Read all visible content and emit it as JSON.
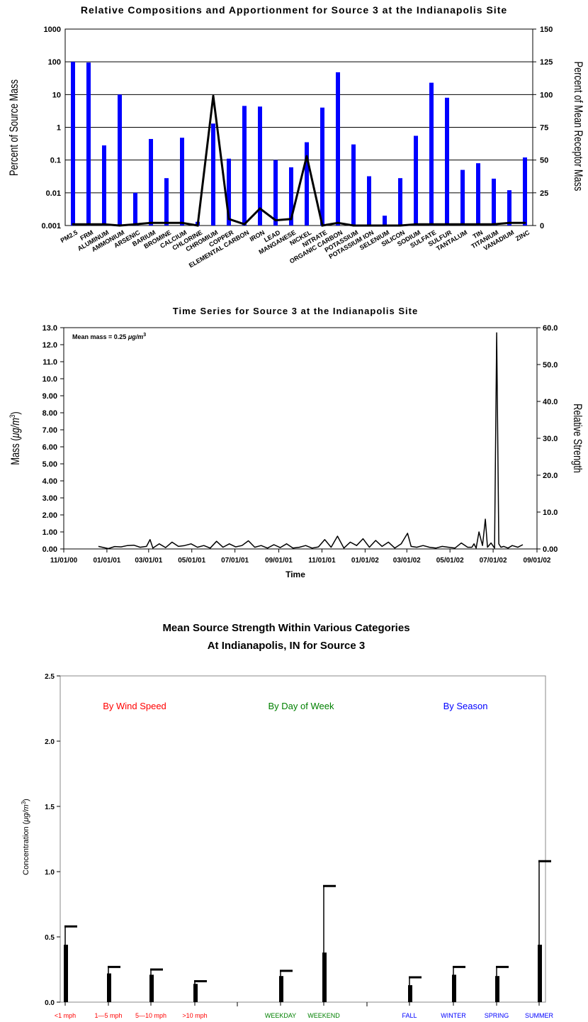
{
  "chart_data": [
    {
      "type": "bar",
      "title": "Relative Compositions and Apportionment for Source 3 at the Indianapolis Site",
      "ylabel": "Percent of Source Mass",
      "y2label": "Percent of Mean Receptor Mass",
      "yscale": "log",
      "ylim": [
        0.001,
        1000
      ],
      "y_ticks": [
        "1000",
        "100",
        "10",
        "1",
        "0.1",
        "0.01",
        "0.001"
      ],
      "y2lim": [
        0,
        150
      ],
      "y2_ticks": [
        "150",
        "125",
        "100",
        "75",
        "50",
        "25",
        "0"
      ],
      "grid": "horizontal",
      "bar_color": "#0000ff",
      "line_color": "#000000",
      "categories": [
        "PM2.5",
        "FRM",
        "ALUMINUM",
        "AMMONIUM",
        "ARSENIC",
        "BARIUM",
        "BROMINE",
        "CALCIUM",
        "CHLORINE",
        "CHROMIUM",
        "COPPER",
        "ELEMENTAL CARBON",
        "IRON",
        "LEAD",
        "MANGANESE",
        "NICKEL",
        "NITRATE",
        "ORGANIC CARBON",
        "POTASSIUM",
        "POTASSIUM ION",
        "SELENIUM",
        "SILICON",
        "SODIUM",
        "SULFATE",
        "SULFUR",
        "TANTALUM",
        "TIN",
        "TITANIUM",
        "VANADIUM",
        "ZINC"
      ],
      "series": [
        {
          "values": [
            100,
            95,
            0.28,
            10,
            0.01,
            0.44,
            0.028,
            0.48,
            0.0013,
            1.3,
            0.11,
            4.5,
            4.3,
            0.1,
            0.06,
            0.35,
            4,
            48,
            0.3,
            0.032,
            0.002,
            0.028,
            0.55,
            23,
            8,
            0.05,
            0.08,
            0.027,
            0.012,
            0.12
          ]
        },
        {
          "axis": "right",
          "values": [
            1,
            1,
            1,
            0,
            1,
            2,
            2,
            2,
            0,
            99,
            5,
            1,
            13,
            4,
            5,
            53,
            0,
            2,
            0,
            0,
            0,
            0,
            1,
            1,
            1,
            1,
            1,
            1,
            2,
            2
          ]
        }
      ]
    },
    {
      "type": "line",
      "title": "Time Series for Source 3 at the Indianapolis Site",
      "xlabel": "Time",
      "ylabel_base": "Mass (",
      "ylabel_unit": "μg/m",
      "ylabel_exp": "3",
      "ylabel_close": ")",
      "y2label": "Relative Strength",
      "annotation": "Mean mass  =  0.25",
      "annotation_unit": "μg/m",
      "annotation_exp": "3",
      "xlim": [
        "2000-11-01",
        "2002-09-01"
      ],
      "x_ticks": [
        "11/01/00",
        "01/01/01",
        "03/01/01",
        "05/01/01",
        "07/01/01",
        "09/01/01",
        "11/01/01",
        "01/01/02",
        "03/01/02",
        "05/01/02",
        "07/01/02",
        "09/01/02"
      ],
      "ylim": [
        0,
        13
      ],
      "y_ticks": [
        "0.00",
        "1.00",
        "2.00",
        "3.00",
        "4.00",
        "5.00",
        "6.00",
        "7.00",
        "8.00",
        "9.00",
        "10.0",
        "11.0",
        "12.0",
        "13.0"
      ],
      "y2lim": [
        0,
        60
      ],
      "y2_ticks": [
        "0.00",
        "10.0",
        "20.0",
        "30.0",
        "40.0",
        "50.0",
        "60.0"
      ],
      "grid": false,
      "series": [
        {
          "x": [
            "2000-12-20",
            "2001-01-03",
            "2001-01-12",
            "2001-01-21",
            "2001-01-30",
            "2001-02-08",
            "2001-02-17",
            "2001-02-26",
            "2001-03-03",
            "2001-03-07",
            "2001-03-16",
            "2001-03-25",
            "2001-04-03",
            "2001-04-12",
            "2001-04-21",
            "2001-04-30",
            "2001-05-09",
            "2001-05-18",
            "2001-05-27",
            "2001-06-05",
            "2001-06-14",
            "2001-06-23",
            "2001-07-02",
            "2001-07-11",
            "2001-07-20",
            "2001-07-29",
            "2001-08-07",
            "2001-08-16",
            "2001-08-25",
            "2001-09-03",
            "2001-09-12",
            "2001-09-21",
            "2001-09-30",
            "2001-10-09",
            "2001-10-18",
            "2001-10-27",
            "2001-11-05",
            "2001-11-14",
            "2001-11-23",
            "2001-12-02",
            "2001-12-11",
            "2001-12-20",
            "2001-12-29",
            "2002-01-07",
            "2002-01-16",
            "2002-01-25",
            "2002-02-03",
            "2002-02-12",
            "2002-02-21",
            "2002-03-02",
            "2002-03-07",
            "2002-03-15",
            "2002-03-24",
            "2002-04-02",
            "2002-04-11",
            "2002-04-20",
            "2002-04-29",
            "2002-05-08",
            "2002-05-17",
            "2002-05-26",
            "2002-06-01",
            "2002-06-04",
            "2002-06-07",
            "2002-06-11",
            "2002-06-16",
            "2002-06-20",
            "2002-06-23",
            "2002-06-28",
            "2002-07-03",
            "2002-07-06",
            "2002-07-09",
            "2002-07-12",
            "2002-07-16",
            "2002-07-22",
            "2002-07-28",
            "2002-08-05",
            "2002-08-12"
          ],
          "values": [
            0.15,
            0.02,
            0.14,
            0.12,
            0.2,
            0.22,
            0.1,
            0.15,
            0.55,
            0.05,
            0.3,
            0.08,
            0.4,
            0.15,
            0.2,
            0.3,
            0.1,
            0.2,
            0.05,
            0.45,
            0.1,
            0.3,
            0.12,
            0.2,
            0.48,
            0.1,
            0.2,
            0.05,
            0.25,
            0.08,
            0.3,
            0.05,
            0.1,
            0.2,
            0.05,
            0.12,
            0.55,
            0.1,
            0.75,
            0.05,
            0.4,
            0.2,
            0.6,
            0.1,
            0.5,
            0.15,
            0.4,
            0.05,
            0.3,
            0.92,
            0.15,
            0.1,
            0.2,
            0.1,
            0.05,
            0.15,
            0.1,
            0.05,
            0.35,
            0.1,
            0.1,
            0.3,
            0.05,
            1.0,
            0.2,
            1.75,
            0.1,
            0.35,
            0.05,
            12.7,
            0.3,
            0.1,
            0.15,
            0.05,
            0.2,
            0.1,
            0.25
          ]
        }
      ]
    },
    {
      "type": "bar",
      "title_line1": "Mean Source Strength Within Various Categories",
      "title_line2": "At Indianapolis, IN  for Source 3",
      "ylabel": "Concentration (",
      "ylabel_unit": "μg/m",
      "ylabel_exp": "3",
      "ylabel_close": ")",
      "ylim": [
        0,
        2.5
      ],
      "y_ticks": [
        "0.0",
        "0.5",
        "1.0",
        "1.5",
        "2.0",
        "2.5"
      ],
      "groups": [
        {
          "label": "By Wind Speed",
          "color": "#ff0000",
          "categories": [
            "<1 mph",
            "1—5 mph",
            "5—10 mph",
            ">10 mph"
          ],
          "values": [
            0.44,
            0.22,
            0.21,
            0.14
          ],
          "error_upper": [
            0.58,
            0.27,
            0.25,
            0.16
          ]
        },
        {
          "label": "By Day of Week",
          "color": "#008000",
          "categories": [
            "WEEKDAY",
            "WEEKEND"
          ],
          "values": [
            0.2,
            0.38
          ],
          "error_upper": [
            0.24,
            0.89
          ]
        },
        {
          "label": "By Season",
          "color": "#0000ff",
          "categories": [
            "FALL",
            "WINTER",
            "SPRING",
            "SUMMER"
          ],
          "values": [
            0.13,
            0.21,
            0.2,
            0.44
          ],
          "error_upper": [
            0.19,
            0.27,
            0.27,
            1.08
          ]
        }
      ]
    }
  ]
}
